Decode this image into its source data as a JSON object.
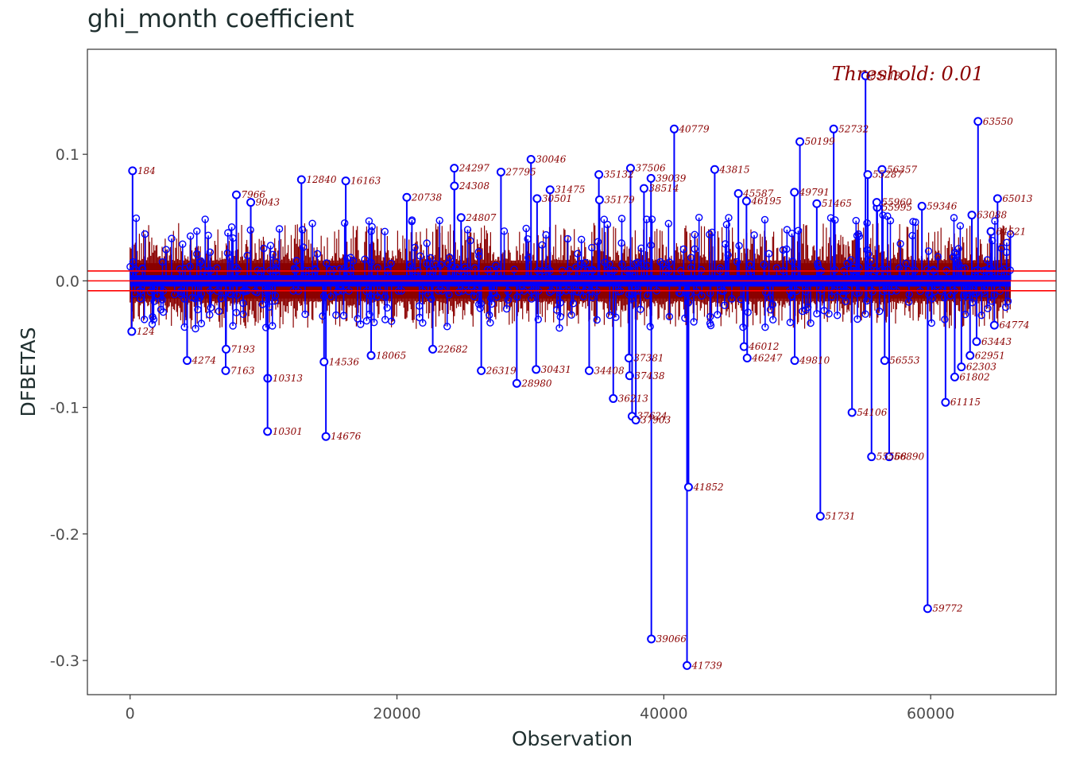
{
  "chart_data": {
    "type": "scatter",
    "title": "ghi_month coefficient",
    "xlabel": "Observation",
    "ylabel": "DFBETAS",
    "xlim": [
      -3200,
      69400
    ],
    "ylim": [
      -0.327,
      0.183
    ],
    "x_ticks": [
      0,
      20000,
      40000,
      60000
    ],
    "x_tick_labels": [
      "0",
      "20000",
      "40000",
      "60000"
    ],
    "y_ticks": [
      -0.3,
      -0.2,
      -0.1,
      0.0,
      0.1
    ],
    "y_tick_labels": [
      "-0.3",
      "-0.2",
      "-0.1",
      "0.0",
      "0.1"
    ],
    "n_observations": 66000,
    "threshold": 0.0078,
    "threshold_label": "Threshold: 0.01",
    "grid": false,
    "colors": {
      "stem": "#0000ff",
      "label": "#8b0000",
      "threshold_line": "#ff0000",
      "frame": "#333333"
    },
    "points": [
      {
        "x": 184,
        "y": 0.087,
        "label": "184"
      },
      {
        "x": 124,
        "y": -0.04,
        "label": "124"
      },
      {
        "x": 4274,
        "y": -0.063,
        "label": "4274"
      },
      {
        "x": 7966,
        "y": 0.068,
        "label": "7966"
      },
      {
        "x": 9043,
        "y": 0.062,
        "label": "9043"
      },
      {
        "x": 7163,
        "y": -0.071,
        "label": "7163"
      },
      {
        "x": 7193,
        "y": -0.054,
        "label": "7193"
      },
      {
        "x": 10313,
        "y": -0.077,
        "label": "10313"
      },
      {
        "x": 10301,
        "y": -0.119,
        "label": "10301"
      },
      {
        "x": 12840,
        "y": 0.08,
        "label": "12840"
      },
      {
        "x": 14676,
        "y": -0.123,
        "label": "14676"
      },
      {
        "x": 14536,
        "y": -0.064,
        "label": "14536"
      },
      {
        "x": 16163,
        "y": 0.079,
        "label": "16163"
      },
      {
        "x": 18065,
        "y": -0.059,
        "label": "18065"
      },
      {
        "x": 20738,
        "y": 0.066,
        "label": "20738"
      },
      {
        "x": 22682,
        "y": -0.054,
        "label": "22682"
      },
      {
        "x": 24297,
        "y": 0.089,
        "label": "24297"
      },
      {
        "x": 24308,
        "y": 0.075,
        "label": "24308"
      },
      {
        "x": 24807,
        "y": 0.05,
        "label": "24807"
      },
      {
        "x": 26319,
        "y": -0.071,
        "label": "26319"
      },
      {
        "x": 27795,
        "y": 0.086,
        "label": "27795"
      },
      {
        "x": 28980,
        "y": -0.081,
        "label": "28980"
      },
      {
        "x": 30046,
        "y": 0.096,
        "label": "30046"
      },
      {
        "x": 30431,
        "y": -0.07,
        "label": "30431"
      },
      {
        "x": 30501,
        "y": 0.065,
        "label": "30501"
      },
      {
        "x": 31475,
        "y": 0.072,
        "label": "31475"
      },
      {
        "x": 34408,
        "y": -0.071,
        "label": "34408"
      },
      {
        "x": 35132,
        "y": 0.084,
        "label": "35132"
      },
      {
        "x": 35179,
        "y": 0.064,
        "label": "35179"
      },
      {
        "x": 36213,
        "y": -0.093,
        "label": "36213"
      },
      {
        "x": 37506,
        "y": 0.089,
        "label": "37506"
      },
      {
        "x": 37438,
        "y": -0.075,
        "label": "37438"
      },
      {
        "x": 37381,
        "y": -0.061,
        "label": "37381"
      },
      {
        "x": 37624,
        "y": -0.107,
        "label": "37624"
      },
      {
        "x": 37903,
        "y": -0.11,
        "label": "37903"
      },
      {
        "x": 38514,
        "y": 0.073,
        "label": "38514"
      },
      {
        "x": 39039,
        "y": 0.081,
        "label": "39039"
      },
      {
        "x": 39066,
        "y": -0.283,
        "label": "39066"
      },
      {
        "x": 40779,
        "y": 0.12,
        "label": "40779"
      },
      {
        "x": 41739,
        "y": -0.304,
        "label": "41739"
      },
      {
        "x": 41852,
        "y": -0.163,
        "label": "41852"
      },
      {
        "x": 43815,
        "y": 0.088,
        "label": "43815"
      },
      {
        "x": 45587,
        "y": 0.069,
        "label": "45587"
      },
      {
        "x": 46195,
        "y": 0.063,
        "label": "46195"
      },
      {
        "x": 46012,
        "y": -0.052,
        "label": "46012"
      },
      {
        "x": 46247,
        "y": -0.061,
        "label": "46247"
      },
      {
        "x": 49791,
        "y": 0.07,
        "label": "49791"
      },
      {
        "x": 50199,
        "y": 0.11,
        "label": "50199"
      },
      {
        "x": 49810,
        "y": -0.063,
        "label": "49810"
      },
      {
        "x": 51465,
        "y": 0.061,
        "label": "51465"
      },
      {
        "x": 51731,
        "y": -0.186,
        "label": "51731"
      },
      {
        "x": 52732,
        "y": 0.12,
        "label": "52732"
      },
      {
        "x": 54106,
        "y": -0.104,
        "label": "54106"
      },
      {
        "x": 55118,
        "y": 0.162,
        "label": "55118"
      },
      {
        "x": 55287,
        "y": 0.084,
        "label": "55287"
      },
      {
        "x": 55995,
        "y": 0.058,
        "label": "55995"
      },
      {
        "x": 56357,
        "y": 0.088,
        "label": "56357"
      },
      {
        "x": 55960,
        "y": 0.062,
        "label": "55960"
      },
      {
        "x": 55568,
        "y": -0.139,
        "label": "55568"
      },
      {
        "x": 56890,
        "y": -0.139,
        "label": "56890"
      },
      {
        "x": 56553,
        "y": -0.063,
        "label": "56553"
      },
      {
        "x": 59346,
        "y": 0.059,
        "label": "59346"
      },
      {
        "x": 59772,
        "y": -0.259,
        "label": "59772"
      },
      {
        "x": 61115,
        "y": -0.096,
        "label": "61115"
      },
      {
        "x": 61802,
        "y": -0.076,
        "label": "61802"
      },
      {
        "x": 62303,
        "y": -0.068,
        "label": "62303"
      },
      {
        "x": 62951,
        "y": -0.059,
        "label": "62951"
      },
      {
        "x": 63550,
        "y": 0.126,
        "label": "63550"
      },
      {
        "x": 63443,
        "y": -0.048,
        "label": "63443"
      },
      {
        "x": 63088,
        "y": 0.052,
        "label": "63088"
      },
      {
        "x": 65013,
        "y": 0.065,
        "label": "65013"
      },
      {
        "x": 64521,
        "y": 0.039,
        "label": "64521"
      },
      {
        "x": 64774,
        "y": -0.035,
        "label": "64774"
      }
    ]
  }
}
